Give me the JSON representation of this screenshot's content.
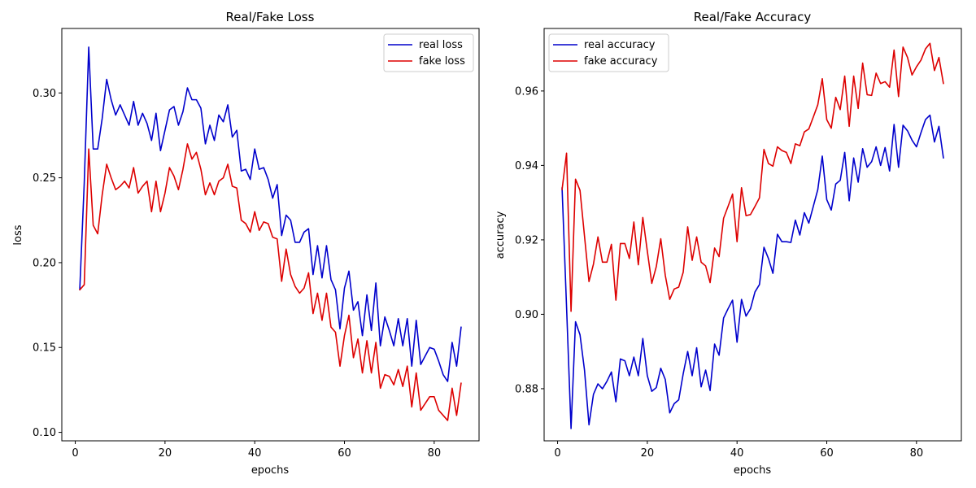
{
  "chart_data": [
    {
      "type": "line",
      "title": "Real/Fake Loss",
      "xlabel": "epochs",
      "ylabel": "loss",
      "xlim": [
        -3,
        90
      ],
      "ylim": [
        0.095,
        0.338
      ],
      "xticks": [
        0,
        20,
        40,
        60,
        80
      ],
      "yticks": [
        0.1,
        0.15,
        0.2,
        0.25,
        0.3
      ],
      "ytick_labels": [
        "0.10",
        "0.15",
        "0.20",
        "0.25",
        "0.30"
      ],
      "legend_position": "top-right",
      "grid": false,
      "series": [
        {
          "name": "real loss",
          "color": "#0000cc",
          "values": [
            0.184,
            0.247,
            0.327,
            0.267,
            0.267,
            0.285,
            0.308,
            0.296,
            0.287,
            0.293,
            0.287,
            0.281,
            0.295,
            0.281,
            0.288,
            0.282,
            0.272,
            0.288,
            0.266,
            0.278,
            0.29,
            0.292,
            0.281,
            0.289,
            0.303,
            0.296,
            0.296,
            0.291,
            0.27,
            0.281,
            0.272,
            0.287,
            0.283,
            0.293,
            0.274,
            0.278,
            0.254,
            0.255,
            0.249,
            0.267,
            0.255,
            0.256,
            0.249,
            0.238,
            0.246,
            0.216,
            0.228,
            0.225,
            0.212,
            0.212,
            0.218,
            0.22,
            0.193,
            0.21,
            0.191,
            0.21,
            0.19,
            0.184,
            0.161,
            0.185,
            0.195,
            0.172,
            0.177,
            0.157,
            0.181,
            0.16,
            0.188,
            0.151,
            0.168,
            0.16,
            0.151,
            0.167,
            0.151,
            0.167,
            0.139,
            0.166,
            0.14,
            0.145,
            0.15,
            0.149,
            0.142,
            0.134,
            0.13,
            0.153,
            0.139,
            0.162
          ]
        },
        {
          "name": "fake loss",
          "color": "#dd0000",
          "values": [
            0.184,
            0.187,
            0.267,
            0.222,
            0.217,
            0.24,
            0.258,
            0.25,
            0.243,
            0.245,
            0.248,
            0.244,
            0.256,
            0.241,
            0.245,
            0.248,
            0.23,
            0.248,
            0.23,
            0.241,
            0.256,
            0.251,
            0.243,
            0.255,
            0.27,
            0.261,
            0.265,
            0.255,
            0.24,
            0.247,
            0.24,
            0.248,
            0.25,
            0.258,
            0.245,
            0.244,
            0.225,
            0.223,
            0.218,
            0.23,
            0.219,
            0.224,
            0.223,
            0.215,
            0.214,
            0.189,
            0.208,
            0.193,
            0.186,
            0.182,
            0.185,
            0.194,
            0.17,
            0.182,
            0.166,
            0.182,
            0.162,
            0.159,
            0.139,
            0.157,
            0.169,
            0.144,
            0.155,
            0.135,
            0.154,
            0.135,
            0.153,
            0.126,
            0.134,
            0.133,
            0.128,
            0.137,
            0.127,
            0.139,
            0.115,
            0.135,
            0.113,
            0.117,
            0.121,
            0.121,
            0.113,
            0.11,
            0.107,
            0.126,
            0.11,
            0.129
          ]
        }
      ]
    },
    {
      "type": "line",
      "title": "Real/Fake Accuracy",
      "xlabel": "epochs",
      "ylabel": "accuracy",
      "xlim": [
        -3,
        90
      ],
      "ylim": [
        0.866,
        0.9768
      ],
      "xticks": [
        0,
        20,
        40,
        60,
        80
      ],
      "yticks": [
        0.88,
        0.9,
        0.92,
        0.94,
        0.96
      ],
      "ytick_labels": [
        "0.88",
        "0.90",
        "0.92",
        "0.94",
        "0.96"
      ],
      "legend_position": "top-left",
      "grid": false,
      "series": [
        {
          "name": "real accuracy",
          "color": "#0000cc",
          "values": [
            0.934,
            0.902,
            0.8693,
            0.898,
            0.8945,
            0.885,
            0.8703,
            0.8785,
            0.8813,
            0.88,
            0.882,
            0.8845,
            0.8765,
            0.888,
            0.8875,
            0.8835,
            0.8885,
            0.8835,
            0.8935,
            0.8835,
            0.8793,
            0.8803,
            0.8855,
            0.8825,
            0.8735,
            0.876,
            0.877,
            0.884,
            0.89,
            0.8835,
            0.891,
            0.8805,
            0.885,
            0.8795,
            0.892,
            0.889,
            0.899,
            0.9015,
            0.9038,
            0.8925,
            0.904,
            0.8995,
            0.9015,
            0.906,
            0.908,
            0.918,
            0.915,
            0.911,
            0.9215,
            0.9195,
            0.9195,
            0.9193,
            0.9253,
            0.9213,
            0.9273,
            0.9245,
            0.929,
            0.9335,
            0.9425,
            0.9308,
            0.928,
            0.935,
            0.936,
            0.9435,
            0.9305,
            0.942,
            0.9355,
            0.9445,
            0.9395,
            0.941,
            0.945,
            0.94,
            0.9448,
            0.9385,
            0.951,
            0.9395,
            0.9508,
            0.9493,
            0.9468,
            0.945,
            0.9488,
            0.9523,
            0.9535,
            0.9463,
            0.9505,
            0.942
          ]
        },
        {
          "name": "fake accuracy",
          "color": "#dd0000",
          "values": [
            0.9335,
            0.9433,
            0.9008,
            0.9363,
            0.9333,
            0.921,
            0.9088,
            0.9135,
            0.9208,
            0.914,
            0.914,
            0.9188,
            0.9038,
            0.919,
            0.919,
            0.915,
            0.9248,
            0.9133,
            0.926,
            0.917,
            0.9083,
            0.9128,
            0.9203,
            0.9105,
            0.904,
            0.9068,
            0.9073,
            0.9113,
            0.9235,
            0.9145,
            0.9208,
            0.914,
            0.913,
            0.9085,
            0.9178,
            0.9155,
            0.9258,
            0.929,
            0.9323,
            0.9195,
            0.934,
            0.9265,
            0.9268,
            0.929,
            0.9313,
            0.9443,
            0.9405,
            0.9398,
            0.945,
            0.944,
            0.9435,
            0.9405,
            0.9458,
            0.9453,
            0.949,
            0.9498,
            0.953,
            0.9563,
            0.9633,
            0.9523,
            0.95,
            0.9583,
            0.955,
            0.964,
            0.9505,
            0.964,
            0.9553,
            0.9675,
            0.959,
            0.9588,
            0.9648,
            0.962,
            0.9625,
            0.961,
            0.971,
            0.9585,
            0.9718,
            0.969,
            0.9643,
            0.9665,
            0.9683,
            0.9713,
            0.9728,
            0.9655,
            0.969,
            0.962
          ]
        }
      ]
    }
  ]
}
